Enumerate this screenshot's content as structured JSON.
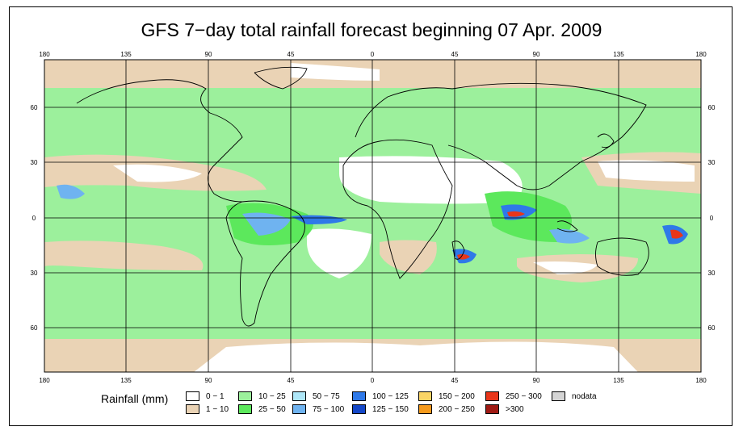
{
  "title": "GFS 7−day total rainfall forecast beginning 07 Apr. 2009",
  "axes": {
    "top_ticks": [
      "180",
      "135",
      "90",
      "45",
      "0",
      "45",
      "90",
      "135",
      "180"
    ],
    "bottom_ticks": [
      "180",
      "135",
      "90",
      "45",
      "0",
      "45",
      "90",
      "135",
      "180"
    ],
    "left_ticks": [
      "60",
      "30",
      "0",
      "30",
      "60"
    ],
    "right_ticks": [
      "60",
      "30",
      "0",
      "30",
      "60"
    ]
  },
  "legend": {
    "title": "Rainfall (mm)",
    "items": [
      {
        "label": "0 − 1",
        "color": "#ffffff"
      },
      {
        "label": "1 − 10",
        "color": "#ead3b5"
      },
      {
        "label": "10 − 25",
        "color": "#9cf09c"
      },
      {
        "label": "25 − 50",
        "color": "#5ce85c"
      },
      {
        "label": "50 − 75",
        "color": "#aee6f7"
      },
      {
        "label": "75 − 100",
        "color": "#6fb3f0"
      },
      {
        "label": "100 − 125",
        "color": "#2f79e8"
      },
      {
        "label": "125 − 150",
        "color": "#1447c8"
      },
      {
        "label": "150 − 200",
        "color": "#fad466"
      },
      {
        "label": "200 − 250",
        "color": "#f59a1c"
      },
      {
        "label": "250 − 300",
        "color": "#e8361a"
      },
      {
        "label": ">300",
        "color": "#a01a14"
      },
      {
        "label": "nodata",
        "color": "#d4d4d4"
      }
    ]
  }
}
